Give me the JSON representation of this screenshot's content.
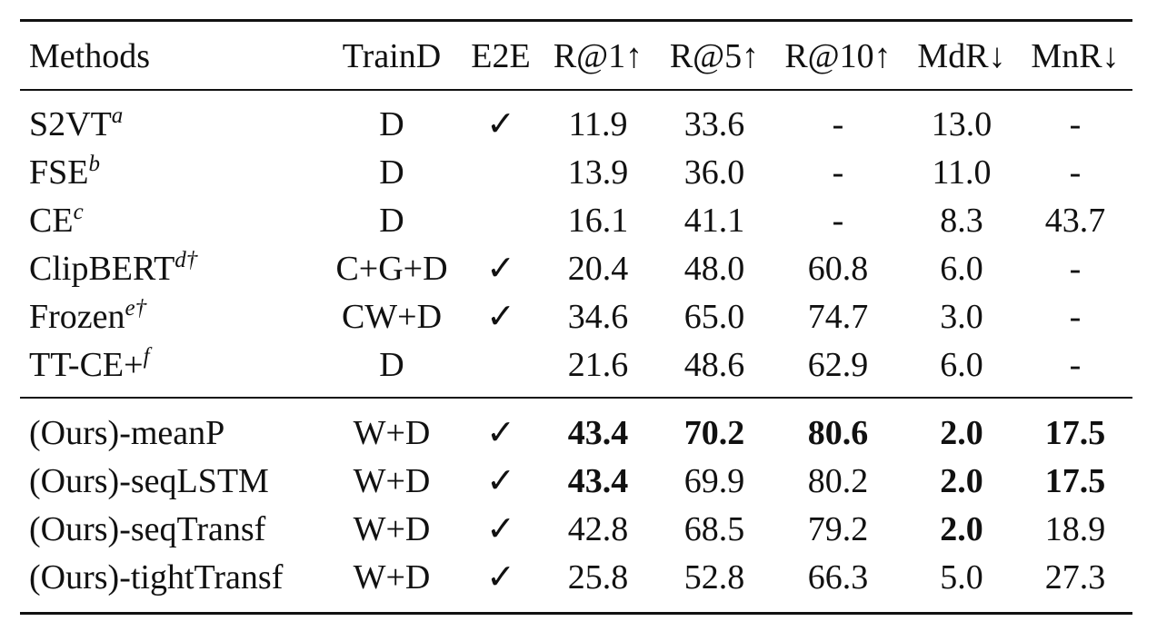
{
  "table": {
    "header": [
      "Methods",
      "TrainD",
      "E2E",
      "R@1↑",
      "R@5↑",
      "R@10↑",
      "MdR↓",
      "MnR↓"
    ],
    "groups": [
      [
        {
          "method": "S2VT",
          "sup": "a",
          "cells": [
            "D",
            "✓",
            "11.9",
            "33.6",
            "-",
            "13.0",
            "-"
          ],
          "bold": [
            false,
            false,
            false,
            false,
            false,
            false,
            false
          ]
        },
        {
          "method": "FSE",
          "sup": "b",
          "cells": [
            "D",
            null,
            "13.9",
            "36.0",
            "-",
            "11.0",
            "-"
          ],
          "bold": [
            false,
            false,
            false,
            false,
            false,
            false,
            false
          ]
        },
        {
          "method": "CE",
          "sup": "c",
          "cells": [
            "D",
            null,
            "16.1",
            "41.1",
            "-",
            "8.3",
            "43.7"
          ],
          "bold": [
            false,
            false,
            false,
            false,
            false,
            false,
            false
          ]
        },
        {
          "method": "ClipBERT",
          "sup": "d†",
          "cells": [
            "C+G+D",
            "✓",
            "20.4",
            "48.0",
            "60.8",
            "6.0",
            "-"
          ],
          "bold": [
            false,
            false,
            false,
            false,
            false,
            false,
            false
          ]
        },
        {
          "method": "Frozen",
          "sup": "e†",
          "cells": [
            "CW+D",
            "✓",
            "34.6",
            "65.0",
            "74.7",
            "3.0",
            "-"
          ],
          "bold": [
            false,
            false,
            false,
            false,
            false,
            false,
            false
          ]
        },
        {
          "method": "TT-CE+",
          "sup": "f",
          "cells": [
            "D",
            null,
            "21.6",
            "48.6",
            "62.9",
            "6.0",
            "-"
          ],
          "bold": [
            false,
            false,
            false,
            false,
            false,
            false,
            false
          ]
        }
      ],
      [
        {
          "method": "(Ours)-meanP",
          "sup": null,
          "cells": [
            "W+D",
            "✓",
            "43.4",
            "70.2",
            "80.6",
            "2.0",
            "17.5"
          ],
          "bold": [
            false,
            false,
            true,
            true,
            true,
            true,
            true
          ]
        },
        {
          "method": "(Ours)-seqLSTM",
          "sup": null,
          "cells": [
            "W+D",
            "✓",
            "43.4",
            "69.9",
            "80.2",
            "2.0",
            "17.5"
          ],
          "bold": [
            false,
            false,
            true,
            false,
            false,
            true,
            true
          ]
        },
        {
          "method": "(Ours)-seqTransf",
          "sup": null,
          "cells": [
            "W+D",
            "✓",
            "42.8",
            "68.5",
            "79.2",
            "2.0",
            "18.9"
          ],
          "bold": [
            false,
            false,
            false,
            false,
            false,
            true,
            false
          ]
        },
        {
          "method": "(Ours)-tightTransf",
          "sup": null,
          "cells": [
            "W+D",
            "✓",
            "25.8",
            "52.8",
            "66.3",
            "5.0",
            "27.3"
          ],
          "bold": [
            false,
            false,
            false,
            false,
            false,
            false,
            false
          ]
        }
      ]
    ]
  }
}
